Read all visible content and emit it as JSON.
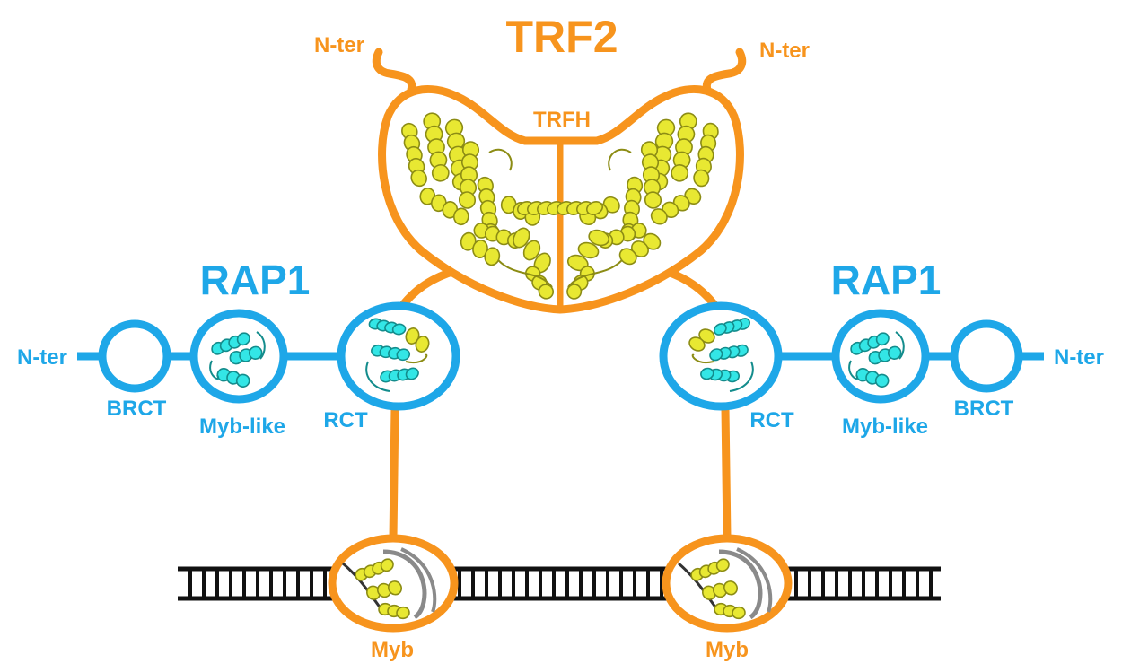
{
  "colors": {
    "trf2": "#f7941d",
    "rap1": "#1ea7e8",
    "dna": "#111111",
    "helix_yellow": "#e8e832",
    "helix_yellow_dark": "#8c8c14",
    "helix_cyan": "#33e6e6",
    "helix_cyan_dark": "#138c8c",
    "dna_grey": "#8a8a8a",
    "background": "#ffffff"
  },
  "trf2": {
    "title": "TRF2",
    "nter_left": "N-ter",
    "nter_right": "N-ter",
    "trfh_label": "TRFH",
    "myb_left": "Myb",
    "myb_right": "Myb"
  },
  "rap1_left": {
    "title": "RAP1",
    "nter": "N-ter",
    "brct": "BRCT",
    "myb_like": "Myb-like",
    "rct": "RCT"
  },
  "rap1_right": {
    "title": "RAP1",
    "nter": "N-ter",
    "brct": "BRCT",
    "myb_like": "Myb-like",
    "rct": "RCT"
  },
  "structure_icons": {
    "trfh_dimer": "trfh-dimer-ribbon",
    "myb_like_domain": "myb-like-ribbon",
    "rct_complex": "rct-complex-ribbon",
    "myb_dna_complex": "myb-dna-ribbon"
  }
}
